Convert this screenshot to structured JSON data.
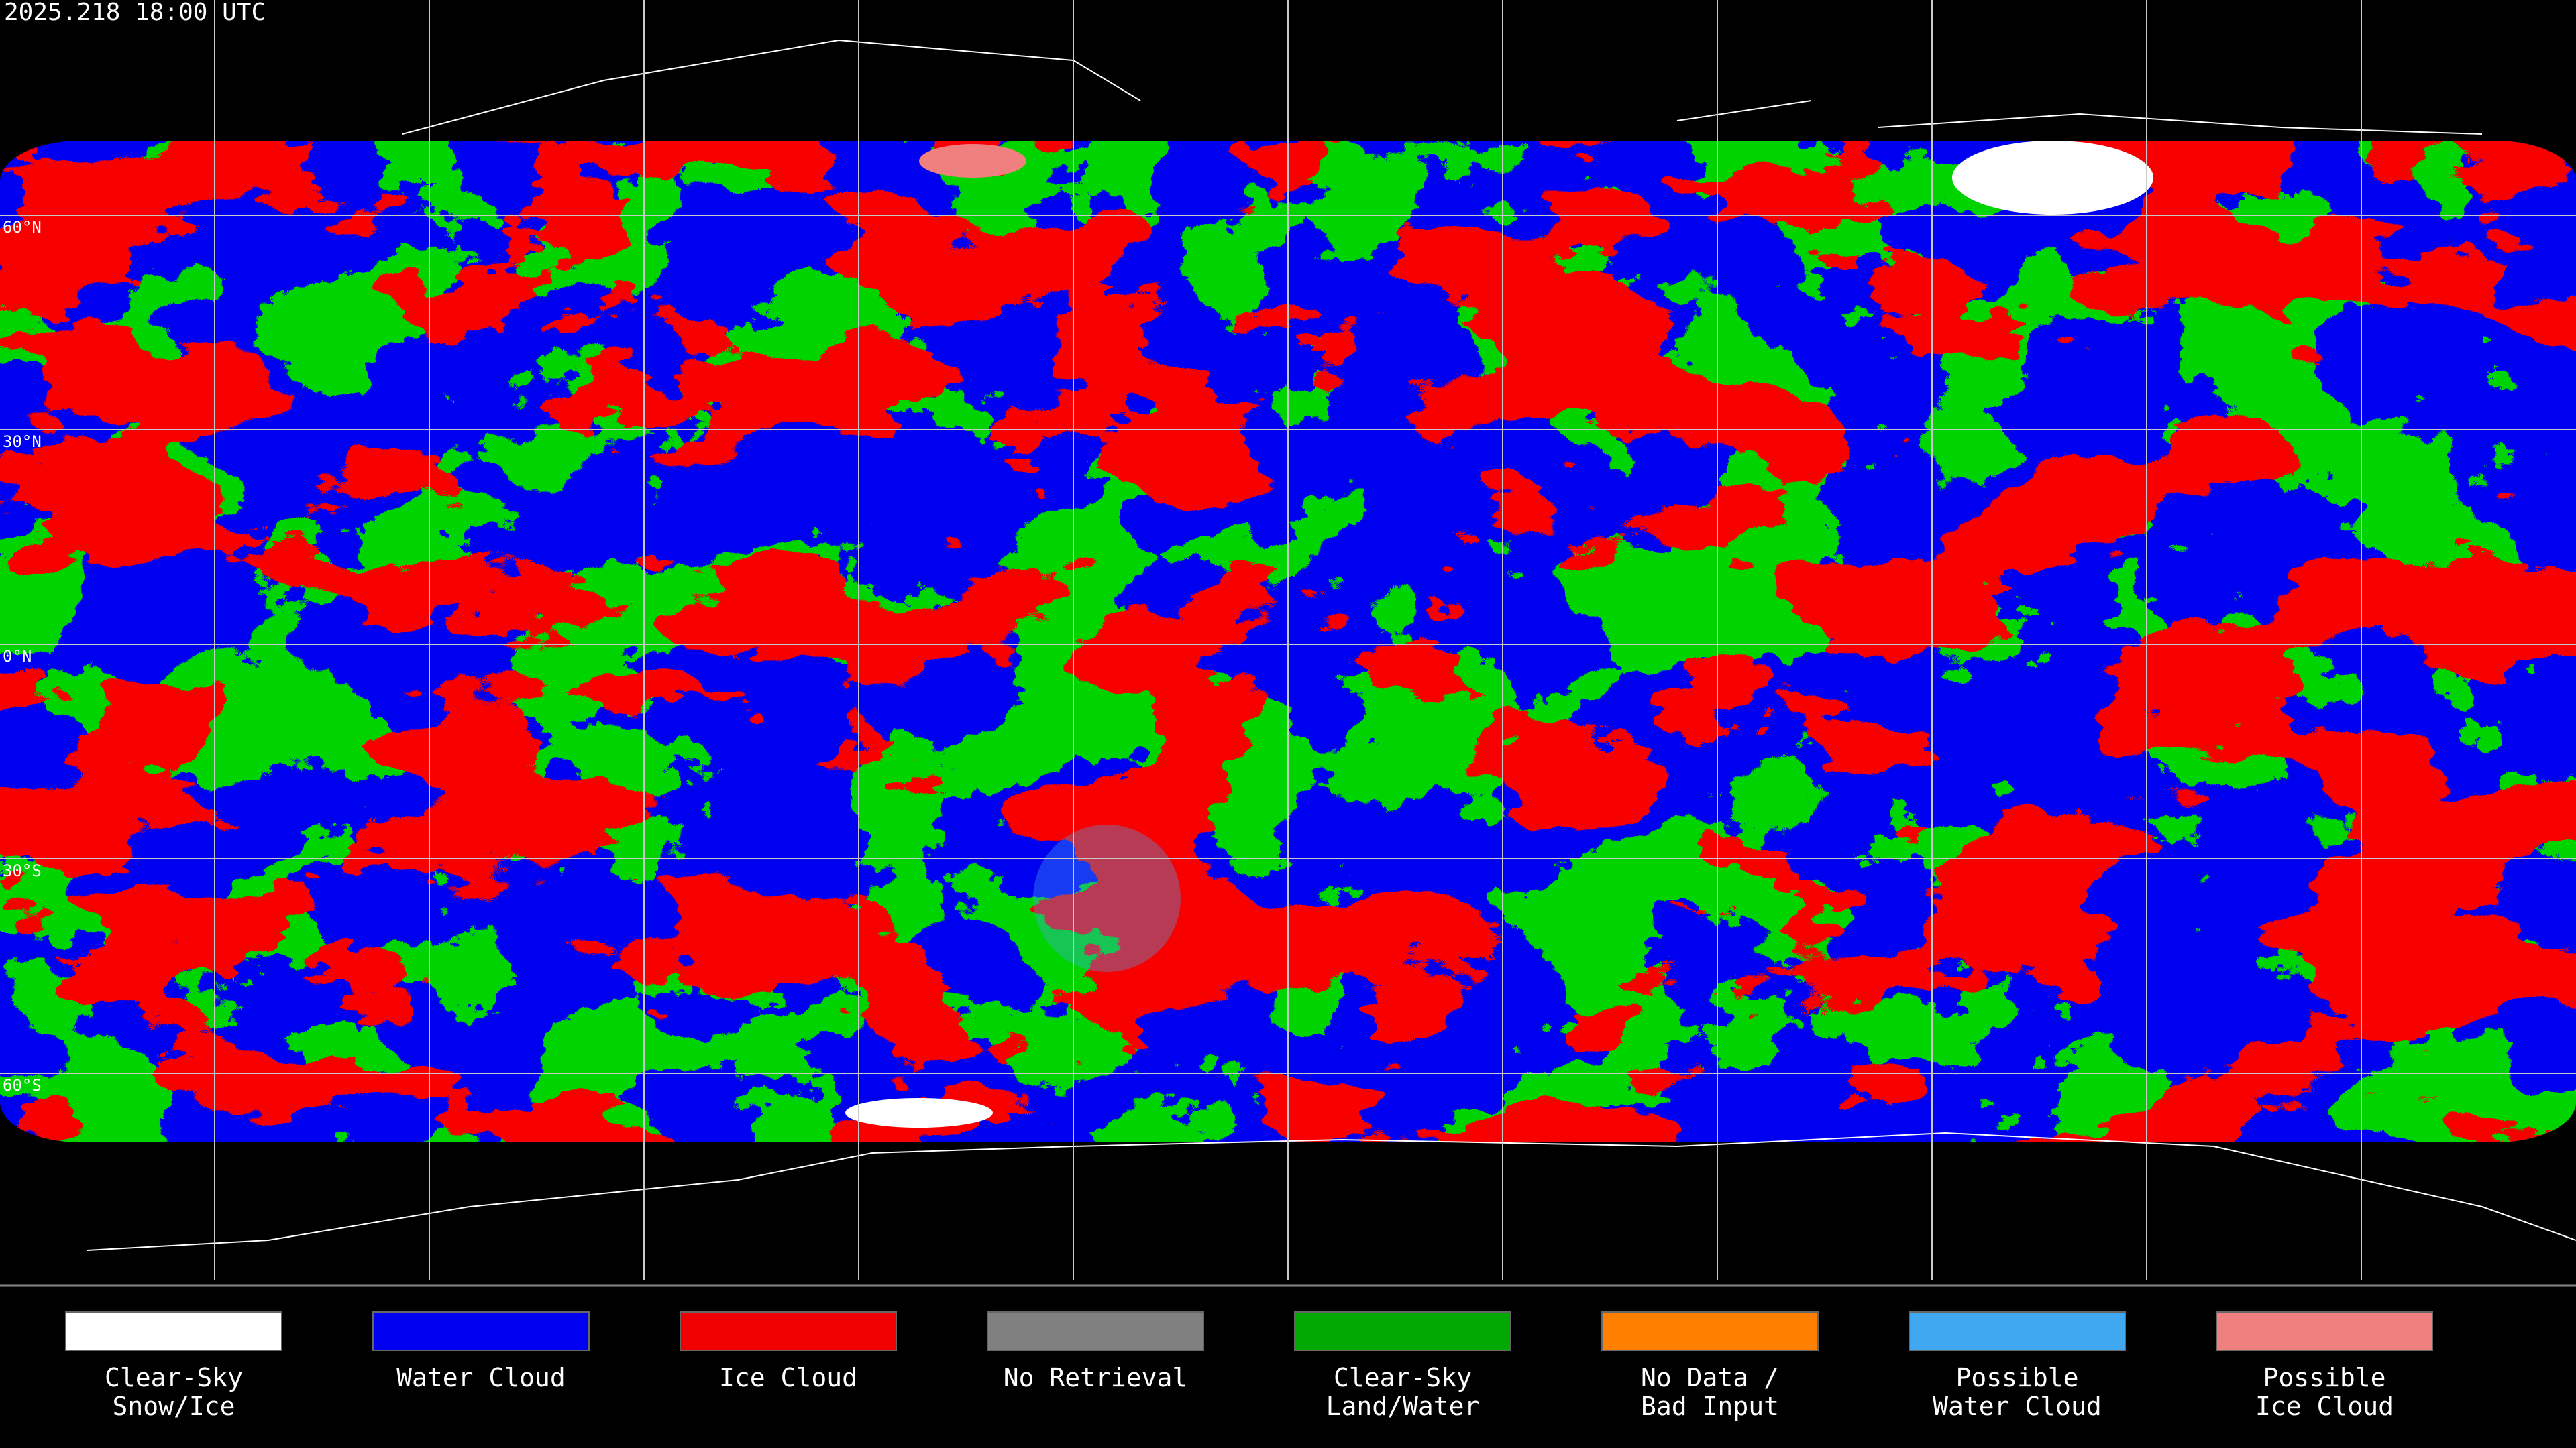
{
  "header": {
    "title": "2025.218 18:00 UTC"
  },
  "map": {
    "latitude_labels": [
      "60°N",
      "30°N",
      "0°N",
      "30°S",
      "60°S"
    ]
  },
  "legend": {
    "items": [
      {
        "label_lines": [
          "Clear-Sky",
          "Snow/Ice"
        ],
        "color": "#ffffff"
      },
      {
        "label_lines": [
          "Water Cloud"
        ],
        "color": "#0000f0"
      },
      {
        "label_lines": [
          "Ice Cloud"
        ],
        "color": "#f00000"
      },
      {
        "label_lines": [
          "No Retrieval"
        ],
        "color": "#808080"
      },
      {
        "label_lines": [
          "Clear-Sky",
          "Land/Water"
        ],
        "color": "#00a800"
      },
      {
        "label_lines": [
          "No Data /",
          "Bad Input"
        ],
        "color": "#ff8000"
      },
      {
        "label_lines": [
          "Possible",
          "Water Cloud"
        ],
        "color": "#40a8f0"
      },
      {
        "label_lines": [
          "Possible",
          "Ice Cloud"
        ],
        "color": "#f08080"
      }
    ]
  }
}
